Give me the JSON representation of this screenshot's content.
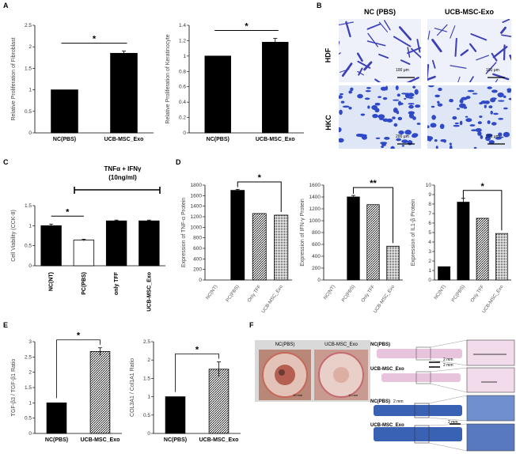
{
  "panel_labels": {
    "A": "A",
    "B": "B",
    "C": "C",
    "D": "D",
    "E": "E",
    "F": "F"
  },
  "panel_b": {
    "col_headers": [
      "NC (PBS)",
      "UCB-MSC-Exo"
    ],
    "row_labels": [
      "HDF",
      "HKC"
    ],
    "scale_bars": [
      "100 μm",
      "100 μm",
      "200 μm",
      "200 μm"
    ]
  },
  "panel_c_treatment": {
    "line1": "TNFα + IFNγ",
    "line2": "(10ng/ml)"
  },
  "panel_f": {
    "photo_labels": [
      "NC(PBS)",
      "UCB-MSC_Exo"
    ],
    "photo_scales": [
      "10 mm",
      "10 mm"
    ],
    "row_labels": [
      "NC(PBS)",
      "UCB-MSC_Exo",
      "NC(PBS)",
      "UCB-MSC_Exo"
    ],
    "mm_labels": [
      "2 mm",
      "2 mm",
      "2 mm",
      "2 mm"
    ],
    "colors": {
      "he_pink": "#e8c4dc",
      "trichrome_blue": "#3a62b4",
      "photo_bg": "#d9a898"
    }
  },
  "chart_data": [
    {
      "id": "A1",
      "type": "bar",
      "categories": [
        "NC(PBS)",
        "UCB-MSC_Exo"
      ],
      "values": [
        1.0,
        1.85
      ],
      "errors": [
        0,
        0.05
      ],
      "ylabel": "Relative Proliferation of Fibroblast",
      "ylim": [
        0,
        2.5
      ],
      "yticks": [
        0,
        0.5,
        1,
        1.5,
        2,
        2.5
      ],
      "sig": "*",
      "bar_colors": [
        "#000000",
        "#000000"
      ],
      "x_rot": 0
    },
    {
      "id": "A2",
      "type": "bar",
      "categories": [
        "NC(PBS)",
        "UCB-MSC_Exo"
      ],
      "values": [
        1.0,
        1.18
      ],
      "errors": [
        0,
        0.05
      ],
      "ylabel": "Relative Proliferation of Keratinocyte",
      "ylim": [
        0,
        1.4
      ],
      "yticks": [
        0,
        0.2,
        0.4,
        0.6,
        0.8,
        1,
        1.2,
        1.4
      ],
      "sig": "*",
      "bar_colors": [
        "#000000",
        "#000000"
      ],
      "x_rot": 0
    },
    {
      "id": "C",
      "type": "bar",
      "categories": [
        "NC(NT)",
        "PC(PBS)",
        "only TFF",
        "UCB-MSC_Exo"
      ],
      "values": [
        1.0,
        0.64,
        1.12,
        1.12
      ],
      "errors": [
        0.04,
        0.02,
        0.02,
        0.02
      ],
      "ylabel": "Cell Viability (CCK-8)",
      "ylim": [
        0,
        1.5
      ],
      "yticks": [
        0,
        0.5,
        1,
        1.5
      ],
      "sig": "*",
      "bar_colors": [
        "#000000",
        "#ffffff",
        "#000000",
        "#000000"
      ],
      "x_rot": -90
    },
    {
      "id": "D1",
      "type": "bar",
      "categories": [
        "NC(NT)",
        "PC(PBS)",
        "Only TFF",
        "UCB-MSC_Exo"
      ],
      "values": [
        0,
        1700,
        1260,
        1230
      ],
      "errors": [
        0,
        20,
        0,
        0
      ],
      "ylabel": "Expression of TNF-α Protein",
      "ylim": [
        0,
        1800
      ],
      "yticks": [
        0,
        200,
        400,
        600,
        800,
        1000,
        1200,
        1400,
        1600,
        1800
      ],
      "sig": "*",
      "bar_colors": [
        "#000000",
        "#000000",
        "#888888",
        "#cccccc"
      ],
      "x_rot": -55
    },
    {
      "id": "D2",
      "type": "bar",
      "categories": [
        "NC(NT)",
        "PC(PBS)",
        "Only TFF",
        "UCB-MSC_Exo"
      ],
      "values": [
        0,
        1400,
        1270,
        570
      ],
      "errors": [
        0,
        25,
        0,
        0
      ],
      "ylabel": "Expression of IFN-γ Protein",
      "ylim": [
        0,
        1600
      ],
      "yticks": [
        0,
        200,
        400,
        600,
        800,
        1000,
        1200,
        1400,
        1600
      ],
      "sig": "**",
      "bar_colors": [
        "#000000",
        "#000000",
        "#888888",
        "#cccccc"
      ],
      "x_rot": -55
    },
    {
      "id": "D3",
      "type": "bar",
      "categories": [
        "NC(NT)",
        "PC(PBS)",
        "Only TFF",
        "UCB-MSC_Exo"
      ],
      "values": [
        1.4,
        8.2,
        6.5,
        4.9
      ],
      "errors": [
        0,
        0.4,
        0,
        0
      ],
      "ylabel": "Expression of IL1-β Protein",
      "ylim": [
        0,
        10
      ],
      "yticks": [
        0,
        1,
        2,
        3,
        4,
        5,
        6,
        7,
        8,
        9,
        10
      ],
      "sig": "*",
      "bar_colors": [
        "#000000",
        "#000000",
        "#888888",
        "#cccccc"
      ],
      "x_rot": -55
    },
    {
      "id": "E1",
      "type": "bar",
      "categories": [
        "NC(PBS)",
        "UCB-MSC_Exo"
      ],
      "values": [
        1.0,
        2.68
      ],
      "errors": [
        0,
        0.12
      ],
      "ylabel": "TGF-β3 / TGF-β1 Ratio",
      "ylim": [
        0,
        3
      ],
      "yticks": [
        0,
        0.5,
        1,
        1.5,
        2,
        2.5,
        3
      ],
      "sig": "*",
      "bar_colors": [
        "#000000",
        "#444444"
      ],
      "x_rot": 0
    },
    {
      "id": "E2",
      "type": "bar",
      "categories": [
        "NC(PBS)",
        "UCB-MSC_Exo"
      ],
      "values": [
        1.0,
        1.75
      ],
      "errors": [
        0,
        0.2
      ],
      "ylabel": "COL3A1 / Col1A1 Ratio",
      "ylim": [
        0,
        2.5
      ],
      "yticks": [
        0,
        0.5,
        1,
        1.5,
        2,
        2.5
      ],
      "sig": "*",
      "bar_colors": [
        "#000000",
        "#444444"
      ],
      "x_rot": 0
    }
  ]
}
